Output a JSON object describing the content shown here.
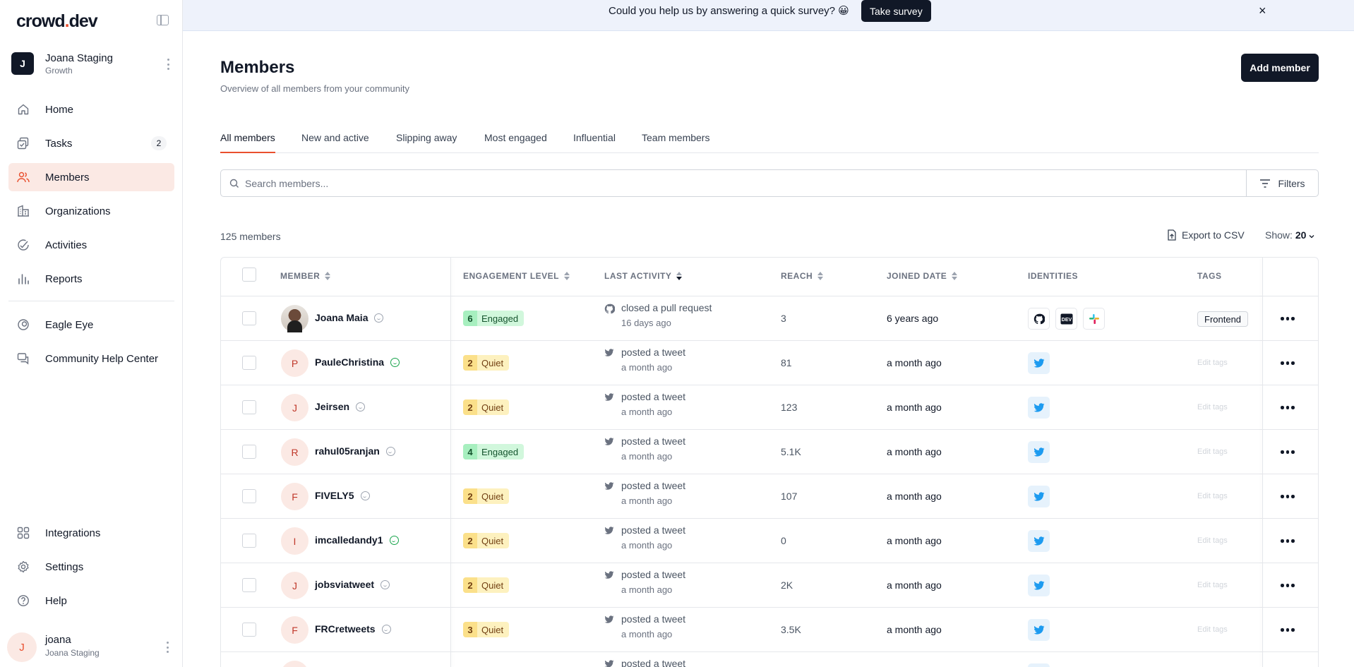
{
  "sidebar": {
    "logo_prefix": "crowd",
    "logo_dot": ".",
    "logo_suffix": "dev",
    "workspace": {
      "initial": "J",
      "name": "Joana Staging",
      "plan": "Growth"
    },
    "nav_top": [
      {
        "label": "Home",
        "icon": "home-icon"
      },
      {
        "label": "Tasks",
        "icon": "tasks-icon",
        "badge": "2"
      },
      {
        "label": "Members",
        "icon": "members-icon",
        "active": true
      },
      {
        "label": "Organizations",
        "icon": "organizations-icon"
      },
      {
        "label": "Activities",
        "icon": "activities-icon"
      },
      {
        "label": "Reports",
        "icon": "reports-icon"
      }
    ],
    "nav_mid": [
      {
        "label": "Eagle Eye",
        "icon": "eagle-eye-icon"
      },
      {
        "label": "Community Help Center",
        "icon": "help-center-icon"
      }
    ],
    "nav_bottom": [
      {
        "label": "Integrations",
        "icon": "integrations-icon"
      },
      {
        "label": "Settings",
        "icon": "settings-icon"
      },
      {
        "label": "Help",
        "icon": "help-icon"
      }
    ],
    "user": {
      "initial": "J",
      "name": "joana",
      "workspace": "Joana Staging"
    }
  },
  "banner": {
    "text": "Could you help us by answering a quick survey? 😀",
    "button": "Take survey",
    "close": "×"
  },
  "header": {
    "title": "Members",
    "subtitle": "Overview of all members from your community",
    "add_button": "Add member"
  },
  "tabs": [
    "All members",
    "New and active",
    "Slipping away",
    "Most engaged",
    "Influential",
    "Team members"
  ],
  "search": {
    "placeholder": "Search members...",
    "filters_label": "Filters"
  },
  "toolbar": {
    "count": "125 members",
    "export": "Export to CSV",
    "show_label": "Show:",
    "show_value": "20"
  },
  "table": {
    "columns": [
      "MEMBER",
      "ENGAGEMENT LEVEL",
      "LAST ACTIVITY",
      "REACH",
      "JOINED DATE",
      "IDENTITIES",
      "TAGS"
    ],
    "edit_tags_label": "Edit tags",
    "rows": [
      {
        "name": "Joana Maia",
        "initial": "",
        "photo": true,
        "smile": "grey",
        "eng_level": "6",
        "eng_label": "Engaged",
        "eng_type": "engaged",
        "activity_icon": "github-icon",
        "activity": "closed a pull request",
        "activity_time": "16 days ago",
        "reach": "3",
        "joined": "6 years ago",
        "identities": [
          "github-icon",
          "devto-icon",
          "slack-icon"
        ],
        "tag": "Frontend"
      },
      {
        "name": "PauleChristina",
        "initial": "P",
        "smile": "green",
        "eng_level": "2",
        "eng_label": "Quiet",
        "eng_type": "quiet",
        "activity_icon": "twitter-icon",
        "activity": "posted a tweet",
        "activity_time": "a month ago",
        "reach": "81",
        "joined": "a month ago",
        "identities": [
          "twitter-icon"
        ],
        "tag": ""
      },
      {
        "name": "Jeirsen",
        "initial": "J",
        "smile": "grey",
        "eng_level": "2",
        "eng_label": "Quiet",
        "eng_type": "quiet",
        "activity_icon": "twitter-icon",
        "activity": "posted a tweet",
        "activity_time": "a month ago",
        "reach": "123",
        "joined": "a month ago",
        "identities": [
          "twitter-icon"
        ],
        "tag": ""
      },
      {
        "name": "rahul05ranjan",
        "initial": "R",
        "smile": "grey",
        "eng_level": "4",
        "eng_label": "Engaged",
        "eng_type": "engaged",
        "activity_icon": "twitter-icon",
        "activity": "posted a tweet",
        "activity_time": "a month ago",
        "reach": "5.1K",
        "joined": "a month ago",
        "identities": [
          "twitter-icon"
        ],
        "tag": ""
      },
      {
        "name": "FIVELY5",
        "initial": "F",
        "smile": "grey",
        "eng_level": "2",
        "eng_label": "Quiet",
        "eng_type": "quiet",
        "activity_icon": "twitter-icon",
        "activity": "posted a tweet",
        "activity_time": "a month ago",
        "reach": "107",
        "joined": "a month ago",
        "identities": [
          "twitter-icon"
        ],
        "tag": ""
      },
      {
        "name": "imcalledandy1",
        "initial": "I",
        "smile": "green",
        "eng_level": "2",
        "eng_label": "Quiet",
        "eng_type": "quiet",
        "activity_icon": "twitter-icon",
        "activity": "posted a tweet",
        "activity_time": "a month ago",
        "reach": "0",
        "joined": "a month ago",
        "identities": [
          "twitter-icon"
        ],
        "tag": ""
      },
      {
        "name": "jobsviatweet",
        "initial": "J",
        "smile": "grey",
        "eng_level": "2",
        "eng_label": "Quiet",
        "eng_type": "quiet",
        "activity_icon": "twitter-icon",
        "activity": "posted a tweet",
        "activity_time": "a month ago",
        "reach": "2K",
        "joined": "a month ago",
        "identities": [
          "twitter-icon"
        ],
        "tag": ""
      },
      {
        "name": "FRCretweets",
        "initial": "F",
        "smile": "grey",
        "eng_level": "3",
        "eng_label": "Quiet",
        "eng_type": "quiet",
        "activity_icon": "twitter-icon",
        "activity": "posted a tweet",
        "activity_time": "a month ago",
        "reach": "3.5K",
        "joined": "a month ago",
        "identities": [
          "twitter-icon"
        ],
        "tag": ""
      },
      {
        "name": "",
        "initial": "",
        "smile": "",
        "eng_level": "",
        "eng_label": "",
        "eng_type": "quiet",
        "activity_icon": "twitter-icon",
        "activity": "posted a tweet",
        "activity_time": "",
        "reach": "",
        "joined": "",
        "identities": [
          "twitter-icon"
        ],
        "tag": ""
      }
    ]
  }
}
